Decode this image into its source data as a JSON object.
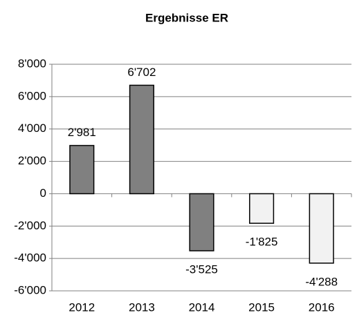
{
  "chart_data": {
    "type": "bar",
    "title": "Ergebnisse ER",
    "categories": [
      "2012",
      "2013",
      "2014",
      "2015",
      "2016"
    ],
    "values": [
      2981,
      6702,
      -3525,
      -1825,
      -4288
    ],
    "value_labels": [
      "2'981",
      "6'702",
      "-3'525",
      "-1'825",
      "-4'288"
    ],
    "colors": [
      "#808080",
      "#808080",
      "#808080",
      "#f2f2f2",
      "#f2f2f2"
    ],
    "ylim": [
      -6000,
      8000
    ],
    "yticks": [
      {
        "value": -6000,
        "label": "-6'000"
      },
      {
        "value": -4000,
        "label": "-4'000"
      },
      {
        "value": -2000,
        "label": "-2'000"
      },
      0,
      {
        "value": 2000,
        "label": "2'000"
      },
      {
        "value": 4000,
        "label": "4'000"
      },
      {
        "value": 6000,
        "label": "6'000"
      },
      {
        "value": 8000,
        "label": "8'000"
      }
    ],
    "grid": true
  }
}
